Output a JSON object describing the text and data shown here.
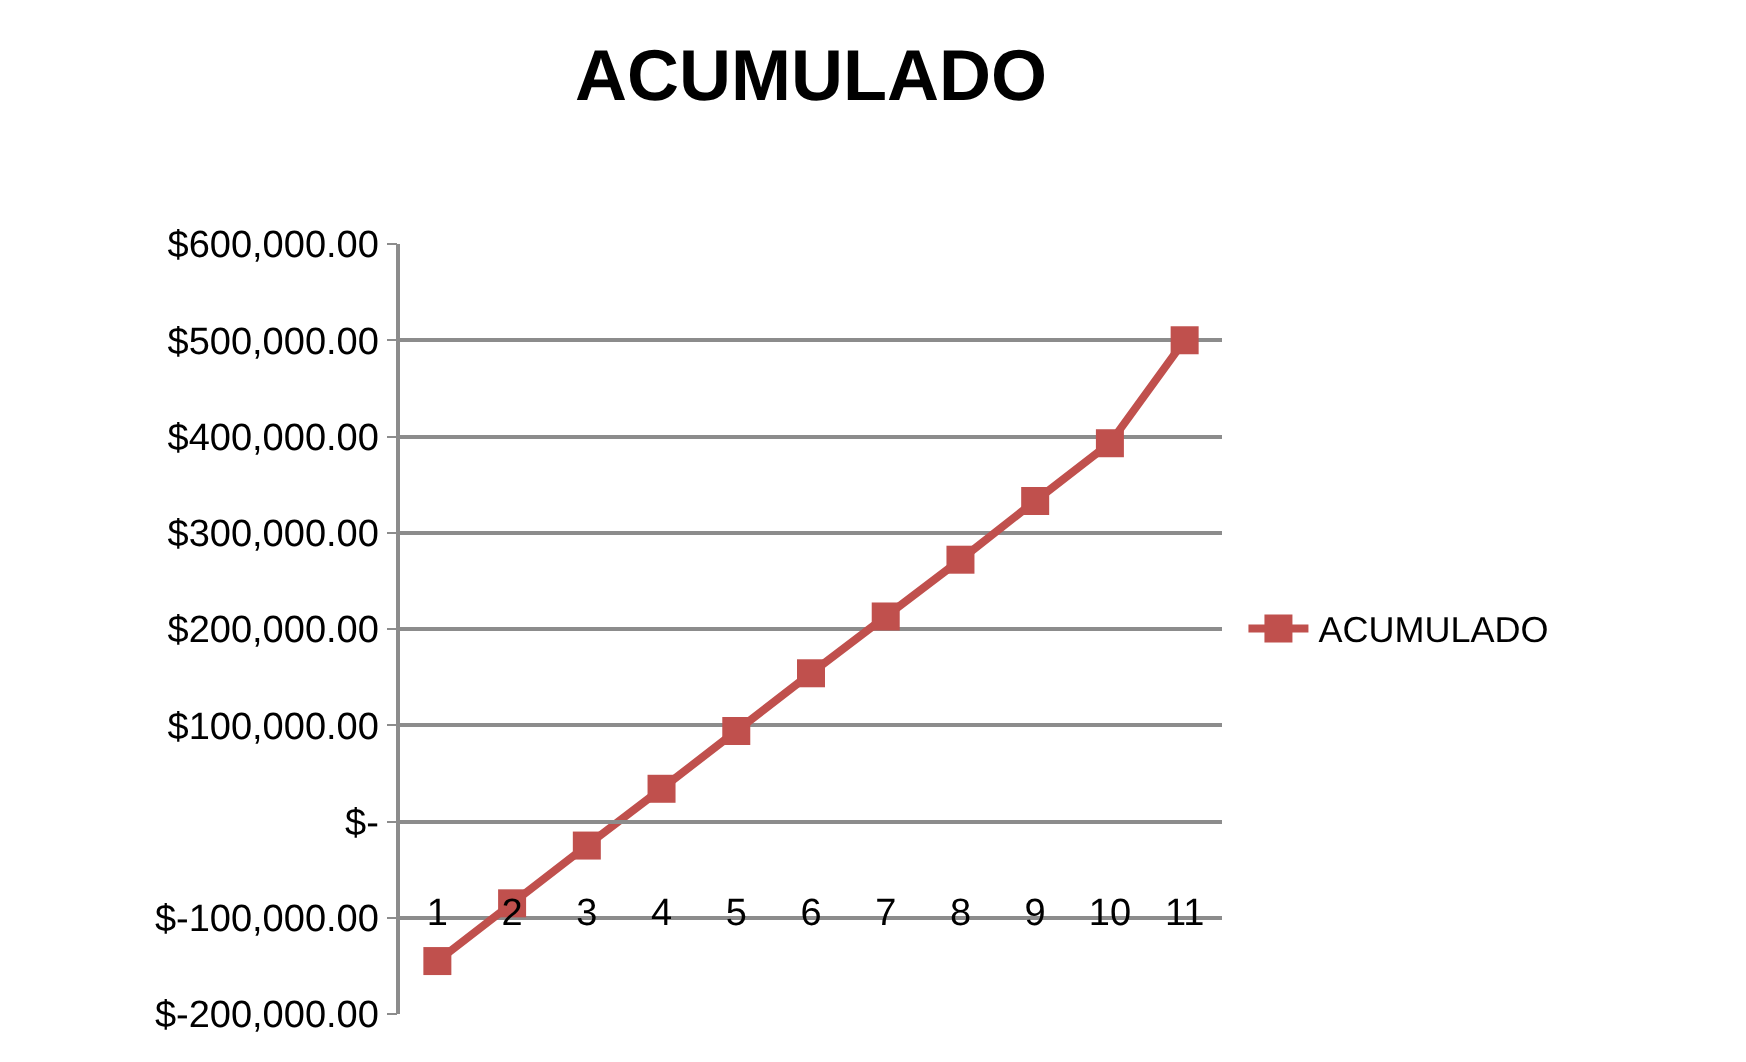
{
  "chart_data": {
    "type": "line",
    "title": "ACUMULADO",
    "categories": [
      "1",
      "2",
      "3",
      "4",
      "5",
      "6",
      "7",
      "8",
      "9",
      "10",
      "11"
    ],
    "series": [
      {
        "name": "ACUMULADO",
        "color": "#c0504d",
        "values": [
          -145000,
          -85000,
          -25000,
          34000,
          94000,
          154000,
          213000,
          272000,
          333000,
          393000,
          500000
        ]
      }
    ],
    "ylim": [
      -200000,
      600000
    ],
    "yticks": [
      {
        "value": -200000,
        "label": "$-200,000.00"
      },
      {
        "value": -100000,
        "label": "$-100,000.00"
      },
      {
        "value": 0,
        "label": "$-"
      },
      {
        "value": 100000,
        "label": "$100,000.00"
      },
      {
        "value": 200000,
        "label": "$200,000.00"
      },
      {
        "value": 300000,
        "label": "$300,000.00"
      },
      {
        "value": 400000,
        "label": "$400,000.00"
      },
      {
        "value": 500000,
        "label": "$500,000.00"
      },
      {
        "value": 600000,
        "label": "$600,000.00"
      }
    ],
    "grid": "y",
    "legend": "right",
    "marker": "square",
    "line_style": "solid"
  }
}
